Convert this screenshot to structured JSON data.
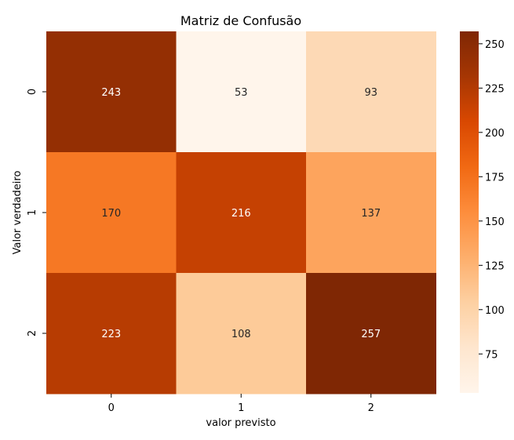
{
  "chart_data": {
    "type": "heatmap",
    "title": "Matriz de Confusão",
    "xlabel": "valor previsto",
    "ylabel": "Valor verdadeiro",
    "x_categories": [
      "0",
      "1",
      "2"
    ],
    "y_categories": [
      "0",
      "1",
      "2"
    ],
    "values": [
      [
        243,
        53,
        93
      ],
      [
        170,
        216,
        137
      ],
      [
        223,
        108,
        257
      ]
    ],
    "colormap": "Oranges",
    "vmin": 53,
    "vmax": 257,
    "colorbar_ticks": [
      75,
      100,
      125,
      150,
      175,
      200,
      225,
      250
    ],
    "low_color": "#fff5eb",
    "high_color": "#7f2704",
    "annotation_dark_text": "#262626",
    "annotation_light_text": "#ffffff"
  }
}
